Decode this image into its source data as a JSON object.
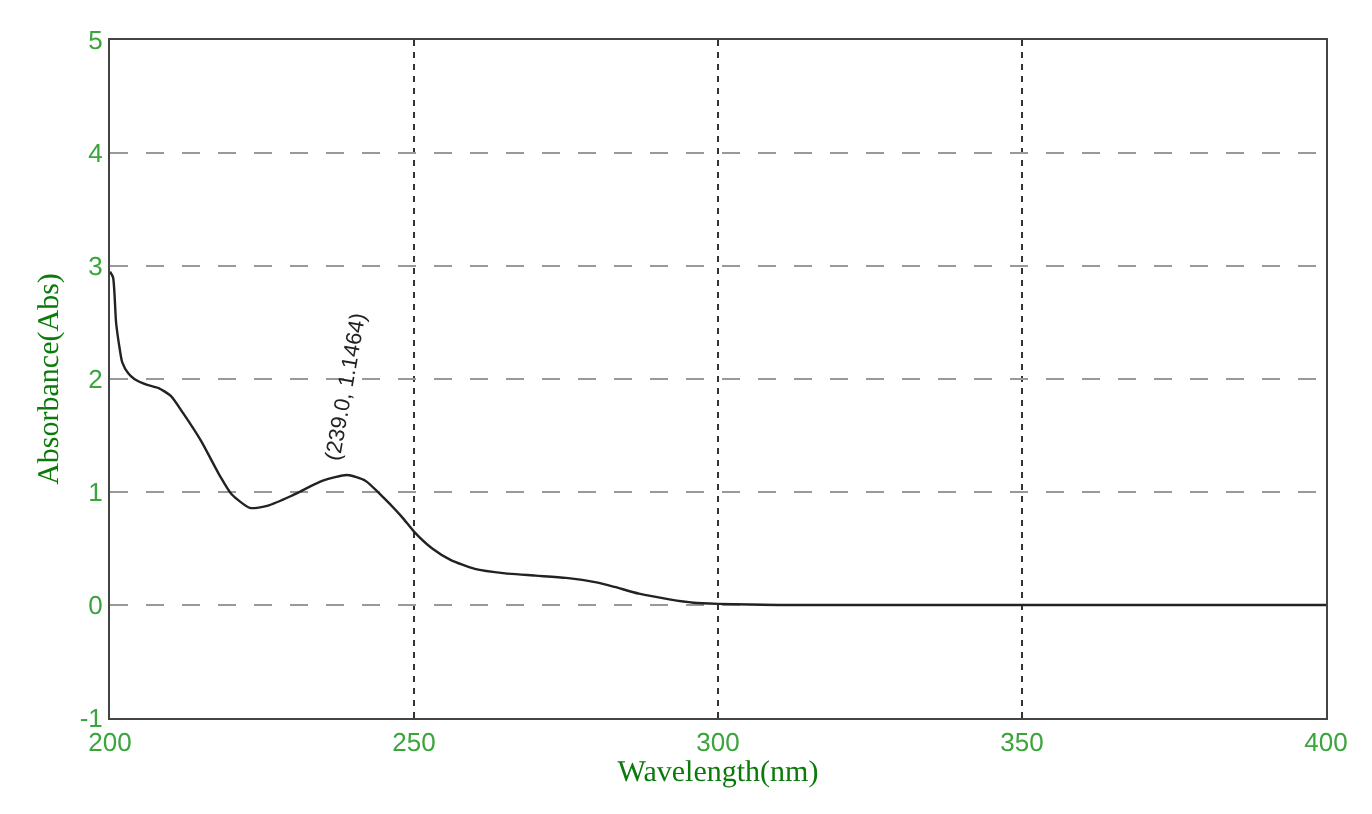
{
  "chart_data": {
    "type": "line",
    "xlabel": "Wavelength(nm)",
    "ylabel": "Absorbance(Abs)",
    "x": [
      200,
      200.5,
      201,
      201.5,
      202,
      203,
      204,
      206,
      208,
      210,
      212,
      215,
      218,
      220,
      223,
      226,
      230,
      235,
      239,
      242,
      245,
      248,
      250,
      253,
      256,
      260,
      265,
      270,
      275,
      280,
      283,
      287,
      292,
      296,
      300,
      310,
      320,
      340,
      360,
      380,
      400
    ],
    "series": [
      {
        "color": "#222222",
        "values": [
          2.95,
          2.9,
          2.5,
          2.3,
          2.15,
          2.05,
          2.0,
          1.95,
          1.92,
          1.85,
          1.7,
          1.45,
          1.15,
          0.98,
          0.86,
          0.88,
          0.97,
          1.1,
          1.15,
          1.1,
          0.95,
          0.78,
          0.65,
          0.5,
          0.4,
          0.32,
          0.28,
          0.26,
          0.24,
          0.2,
          0.16,
          0.1,
          0.05,
          0.02,
          0.01,
          0.0,
          0.0,
          0.0,
          0.0,
          0.0,
          0.0
        ]
      }
    ],
    "annotations": [
      {
        "text": "(239.0, 1.1464)",
        "x": 239,
        "y": 1.15
      }
    ],
    "xlim": [
      200,
      400
    ],
    "ylim": [
      -1,
      5
    ],
    "xticks": [
      200,
      250,
      300,
      350,
      400
    ],
    "yticks": [
      -1,
      0,
      1,
      2,
      3,
      4,
      5
    ],
    "grid": true,
    "line_style": "solid",
    "marker": "none"
  }
}
